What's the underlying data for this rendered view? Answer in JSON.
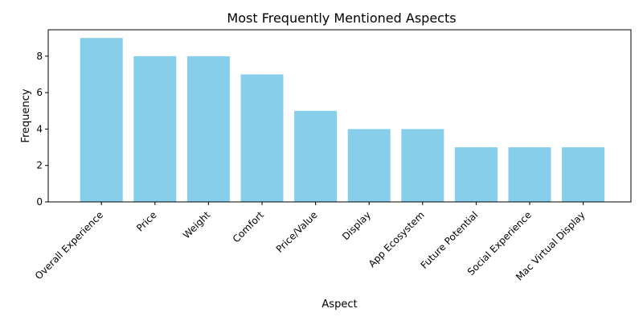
{
  "chart_data": {
    "type": "bar",
    "title": "Most Frequently Mentioned Aspects",
    "xlabel": "Aspect",
    "ylabel": "Frequency",
    "categories": [
      "Overall Experience",
      "Price",
      "Weight",
      "Comfort",
      "Price/Value",
      "Display",
      "App Ecosystem",
      "Future Potential",
      "Social Experience",
      "Mac Virtual Display"
    ],
    "values": [
      9,
      8,
      8,
      7,
      5,
      4,
      4,
      3,
      3,
      3
    ],
    "ylim": [
      0,
      9.45
    ],
    "yticks": [
      0,
      2,
      4,
      6,
      8
    ],
    "grid": false,
    "bar_color": "#87ceeb"
  }
}
